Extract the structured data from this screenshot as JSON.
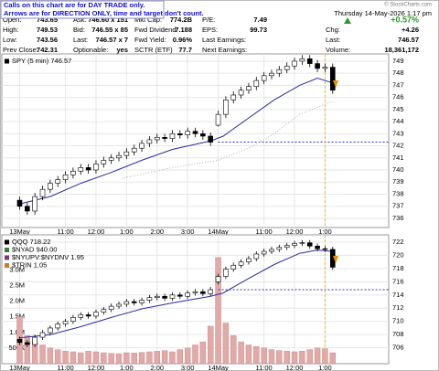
{
  "site": "© StockCharts.com",
  "date": "Thursday 14-May-2026 1:17 pm",
  "note": [
    "Calls on this chart are for DAY TRADE only.",
    "Arrows are for DIRECTION ONLY, time and target don't count."
  ],
  "header": {
    "columns": [
      [
        {
          "label": "Open:",
          "value": "743.65"
        },
        {
          "label": "High:",
          "value": "749.53"
        },
        {
          "label": "Low:",
          "value": "743.56"
        },
        {
          "label": "Prev Close:",
          "value": "742.31"
        }
      ],
      [
        {
          "label": "Ask:",
          "value": "746.60 x 151"
        },
        {
          "label": "Bid:",
          "value": "746.55 x 85"
        },
        {
          "label": "Last:",
          "value": "746.57 x 7"
        },
        {
          "label": "Optionable:",
          "value": "yes"
        }
      ],
      [
        {
          "label": "Mkt Cap:",
          "value": "774.2B"
        },
        {
          "label": "Fwd Dividend:",
          "value": "7.188"
        },
        {
          "label": "Fwd Yield:",
          "value": "0.96%"
        },
        {
          "label": "SCTR (ETF)",
          "value": "77.7"
        }
      ],
      [
        {
          "label": "P/E:",
          "value": "7.49"
        },
        {
          "label": "EPS:",
          "value": "99.73"
        },
        {
          "label": "Last Earnings:"
        },
        {
          "label": "Next Earnings:"
        }
      ],
      [
        {
          "value": "+0.57%"
        },
        {
          "label": "Chg:",
          "value": "+4.26"
        },
        {
          "label": "Last:",
          "value": "746.57"
        },
        {
          "label": "Volume:",
          "value": "18,361,172"
        }
      ]
    ]
  },
  "chart_data": [
    {
      "type": "candlestick",
      "legend": [
        {
          "text": "SPY (5 min) 746.57",
          "color": "#000000"
        }
      ],
      "up_color": "#ffffff",
      "down_color": "#000000",
      "x": [
        0,
        3,
        6,
        9,
        12,
        15,
        18,
        21,
        24,
        27,
        30,
        33,
        36,
        39,
        42,
        45,
        48,
        51,
        54,
        57,
        60,
        63,
        66,
        69,
        72,
        75,
        78,
        81,
        84,
        87,
        90,
        93,
        96,
        99,
        102,
        105,
        108,
        111,
        114,
        117,
        120,
        123
      ],
      "open": [
        737.5,
        737.0,
        736.6,
        737.8,
        738.4,
        738.9,
        739.2,
        739.6,
        739.9,
        740.2,
        740.0,
        740.5,
        740.8,
        741.0,
        741.2,
        741.5,
        741.8,
        742.2,
        742.5,
        742.7,
        742.6,
        743.0,
        742.9,
        743.2,
        743.0,
        742.8,
        743.7,
        744.6,
        745.8,
        746.2,
        746.6,
        746.9,
        747.4,
        747.8,
        748.0,
        748.3,
        748.6,
        749.0,
        749.2,
        748.8,
        748.4,
        748.5
      ],
      "high": [
        737.8,
        737.3,
        738.1,
        738.7,
        739.2,
        739.5,
        739.9,
        740.2,
        740.5,
        740.5,
        740.8,
        741.1,
        741.3,
        741.5,
        741.8,
        742.1,
        742.5,
        742.8,
        743.0,
        743.0,
        743.3,
        743.3,
        743.5,
        743.5,
        743.3,
        743.1,
        744.9,
        746.1,
        746.5,
        746.9,
        747.2,
        747.7,
        748.1,
        748.3,
        748.6,
        748.9,
        749.3,
        749.5,
        749.5,
        749.1,
        748.8,
        748.8
      ],
      "low": [
        736.7,
        736.3,
        736.3,
        737.5,
        738.1,
        738.6,
        738.9,
        739.3,
        739.6,
        739.7,
        739.7,
        740.2,
        740.5,
        740.7,
        740.9,
        741.2,
        741.5,
        741.9,
        742.2,
        742.3,
        742.3,
        742.6,
        742.6,
        742.7,
        742.5,
        742.0,
        743.6,
        744.3,
        745.5,
        745.9,
        746.3,
        746.6,
        747.1,
        747.5,
        747.7,
        748.0,
        748.3,
        748.7,
        748.5,
        748.1,
        748.1,
        746.3
      ],
      "close": [
        737.0,
        736.6,
        737.8,
        738.4,
        738.9,
        739.2,
        739.6,
        739.9,
        740.2,
        740.0,
        740.5,
        740.8,
        741.0,
        741.2,
        741.5,
        741.8,
        742.2,
        742.5,
        742.7,
        742.6,
        743.0,
        742.9,
        743.2,
        743.0,
        742.8,
        742.3,
        744.6,
        745.8,
        746.2,
        746.6,
        746.9,
        747.4,
        747.8,
        748.0,
        748.3,
        748.6,
        749.0,
        749.2,
        748.8,
        748.4,
        748.5,
        746.6
      ],
      "overlays": [
        {
          "color": "#2b2b9e",
          "dash": false,
          "x": [
            0,
            12,
            24,
            36,
            48,
            60,
            75,
            80,
            90,
            100,
            110,
            117,
            123
          ],
          "values": [
            737.2,
            737.8,
            738.9,
            739.8,
            740.8,
            741.7,
            742.4,
            742.8,
            744.3,
            745.8,
            747.0,
            747.6,
            747.2
          ]
        },
        {
          "color": "#b0b0b0",
          "dash": true,
          "x": [
            40,
            60,
            78,
            90,
            100,
            110,
            123
          ],
          "values": [
            739.3,
            740.2,
            740.8,
            741.8,
            743.0,
            744.6,
            745.7
          ]
        }
      ],
      "hline": {
        "value": 742.31,
        "from": 78
      },
      "vline": 120,
      "xlim": [
        -7,
        145
      ],
      "ylim": [
        735.24,
        749.6
      ],
      "xticks": [
        {
          "value": 0,
          "label": "13May"
        },
        {
          "value": 18,
          "label": "11:00"
        },
        {
          "value": 30,
          "label": "12:00"
        },
        {
          "value": 42,
          "label": "1:00"
        },
        {
          "value": 54,
          "label": "2:00"
        },
        {
          "value": 66,
          "label": "3:00"
        },
        {
          "value": 78,
          "label": "14May"
        },
        {
          "value": 96,
          "label": "11:00"
        },
        {
          "value": 108,
          "label": "12:00"
        },
        {
          "value": 120,
          "label": "1:00"
        }
      ],
      "yticks": [
        736,
        737,
        738,
        739,
        740,
        741,
        742,
        743,
        744,
        745,
        746,
        747,
        748,
        749
      ]
    },
    {
      "type": "candlestick",
      "legend": [
        {
          "text": "QQQ 718.22",
          "color": "#000000"
        },
        {
          "text": "$NYAD 940.00",
          "color": "#3a7a3a"
        },
        {
          "text": "$NYUPV:$NYDNV 1.95",
          "color": "#7a3a7a"
        },
        {
          "text": "$TRIN 1.05",
          "color": "#c08030"
        }
      ],
      "up_color": "#ffffff",
      "down_color": "#000000",
      "x": [
        0,
        3,
        6,
        9,
        12,
        15,
        18,
        21,
        24,
        27,
        30,
        33,
        36,
        39,
        42,
        45,
        48,
        51,
        54,
        57,
        60,
        63,
        66,
        69,
        72,
        75,
        78,
        81,
        84,
        87,
        90,
        93,
        96,
        99,
        102,
        105,
        108,
        111,
        114,
        117,
        120,
        123
      ],
      "open": [
        707.3,
        706.8,
        706.5,
        707.6,
        708.3,
        709.0,
        709.6,
        710.0,
        710.6,
        711.0,
        710.8,
        711.4,
        711.8,
        712.3,
        712.6,
        713.0,
        712.8,
        713.2,
        713.6,
        713.8,
        713.5,
        714.0,
        713.8,
        714.3,
        714.5,
        714.2,
        716.0,
        716.8,
        717.9,
        718.5,
        719.0,
        719.5,
        720.2,
        720.6,
        720.9,
        721.2,
        721.5,
        721.8,
        721.9,
        721.4,
        721.0,
        720.9
      ],
      "high": [
        707.7,
        707.2,
        708.0,
        708.7,
        709.4,
        710.0,
        710.4,
        711.0,
        711.4,
        711.4,
        711.8,
        712.2,
        712.7,
        713.0,
        713.4,
        713.4,
        713.6,
        714.0,
        714.2,
        714.2,
        714.4,
        714.4,
        714.7,
        714.9,
        714.9,
        715.2,
        717.2,
        718.3,
        718.9,
        719.4,
        719.9,
        720.6,
        721.0,
        721.3,
        721.6,
        721.9,
        722.2,
        722.3,
        722.3,
        721.8,
        721.4,
        721.3
      ],
      "low": [
        706.4,
        706.1,
        706.1,
        707.2,
        707.9,
        708.6,
        709.2,
        709.6,
        710.2,
        710.4,
        710.4,
        711.0,
        711.4,
        711.9,
        712.2,
        712.4,
        712.4,
        712.8,
        713.2,
        713.1,
        713.1,
        713.4,
        713.4,
        713.9,
        713.8,
        713.8,
        715.6,
        716.4,
        717.5,
        718.1,
        718.6,
        719.1,
        719.8,
        720.2,
        720.5,
        720.8,
        721.1,
        721.4,
        721.0,
        720.6,
        720.5,
        717.8
      ],
      "close": [
        706.8,
        706.5,
        707.6,
        708.3,
        709.0,
        709.6,
        710.0,
        710.6,
        711.0,
        710.8,
        711.4,
        711.8,
        712.3,
        712.6,
        713.0,
        712.8,
        713.2,
        713.6,
        713.8,
        713.5,
        714.0,
        713.8,
        714.3,
        714.5,
        714.2,
        714.8,
        716.8,
        717.9,
        718.5,
        719.0,
        719.5,
        720.2,
        720.6,
        720.9,
        721.2,
        721.5,
        721.8,
        721.9,
        721.4,
        721.0,
        720.9,
        718.2
      ],
      "volume": {
        "axis": "y2",
        "color": "#e2a9a9",
        "values": [
          1500000,
          900000,
          700000,
          600000,
          500000,
          450000,
          400000,
          380000,
          350000,
          400000,
          380000,
          350000,
          330000,
          320000,
          350000,
          340000,
          360000,
          380000,
          400000,
          420000,
          380000,
          450000,
          500000,
          600000,
          700000,
          1200000,
          3400000,
          1300000,
          900000,
          700000,
          600000,
          550000,
          500000,
          450000,
          420000,
          400000,
          380000,
          400000,
          450000,
          500000,
          480000,
          350000
        ]
      },
      "overlays": [
        {
          "color": "#2b2b9e",
          "dash": false,
          "x": [
            0,
            12,
            24,
            36,
            48,
            60,
            75,
            80,
            90,
            100,
            110,
            117,
            123
          ],
          "values": [
            707.5,
            708.0,
            709.2,
            710.6,
            711.9,
            712.8,
            713.8,
            714.3,
            716.5,
            718.6,
            720.3,
            720.8,
            720.6
          ]
        }
      ],
      "hline": {
        "value": 714.8,
        "from": 78
      },
      "vline": 120,
      "xlim": [
        -7,
        145
      ],
      "ylim": [
        703.6,
        723.1
      ],
      "y2lim": [
        0,
        4120000
      ],
      "xticks": [
        {
          "value": 0,
          "label": "13May"
        },
        {
          "value": 18,
          "label": "11:00"
        },
        {
          "value": 30,
          "label": "12:00"
        },
        {
          "value": 42,
          "label": "1:00"
        },
        {
          "value": 54,
          "label": "2:00"
        },
        {
          "value": 66,
          "label": "3:00"
        },
        {
          "value": 78,
          "label": "14May"
        },
        {
          "value": 96,
          "label": "11:00"
        },
        {
          "value": 108,
          "label": "12:00"
        },
        {
          "value": 120,
          "label": "1:00"
        }
      ],
      "yticks": [
        706,
        708,
        710,
        712,
        714,
        716,
        718,
        720,
        722
      ],
      "y2ticks": [
        {
          "value": 500000,
          "label": "500K"
        },
        {
          "value": 1000000,
          "label": "1.0M"
        },
        {
          "value": 1500000,
          "label": "1.5M"
        },
        {
          "value": 2000000,
          "label": "2.0M"
        },
        {
          "value": 2500000,
          "label": "2.5M"
        },
        {
          "value": 3000000,
          "label": "3.0M"
        }
      ]
    }
  ]
}
